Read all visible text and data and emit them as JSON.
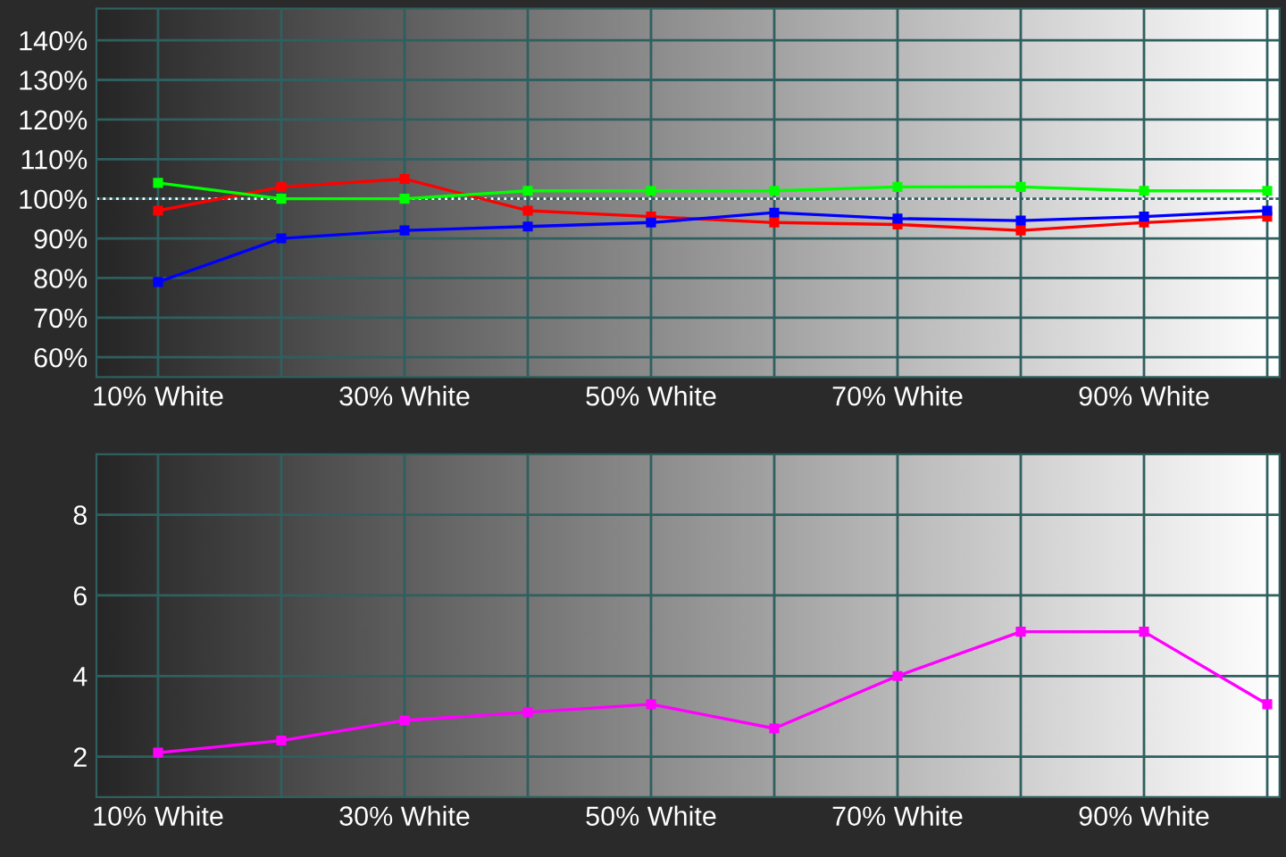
{
  "chart_data": [
    {
      "type": "line",
      "x": [
        10,
        20,
        30,
        40,
        50,
        60,
        70,
        80,
        90,
        100
      ],
      "series": [
        {
          "color": "#ff0000",
          "values": [
            97,
            103,
            105,
            97,
            95.5,
            94,
            93.5,
            92,
            94,
            95.5
          ]
        },
        {
          "color": "#00ff00",
          "values": [
            104,
            100,
            100,
            102,
            102,
            102,
            103,
            103,
            102,
            102
          ]
        },
        {
          "color": "#0000ff",
          "values": [
            79,
            90,
            92,
            93,
            94,
            96.5,
            95,
            94.5,
            95.5,
            97
          ]
        }
      ],
      "xlim": [
        5,
        101
      ],
      "xticks": [
        {
          "value": 10,
          "label": "10% White"
        },
        {
          "value": 20,
          "label": null
        },
        {
          "value": 30,
          "label": "30% White"
        },
        {
          "value": 40,
          "label": null
        },
        {
          "value": 50,
          "label": "50% White"
        },
        {
          "value": 60,
          "label": null
        },
        {
          "value": 70,
          "label": "70% White"
        },
        {
          "value": 80,
          "label": null
        },
        {
          "value": 90,
          "label": "90% White"
        },
        {
          "value": 100,
          "label": null
        }
      ],
      "ylim": [
        55,
        148
      ],
      "yticks": [
        {
          "value": 60,
          "label": "60%"
        },
        {
          "value": 70,
          "label": "70%"
        },
        {
          "value": 80,
          "label": "80%"
        },
        {
          "value": 90,
          "label": "90%"
        },
        {
          "value": 100,
          "label": "100%"
        },
        {
          "value": 110,
          "label": "110%"
        },
        {
          "value": 120,
          "label": "120%"
        },
        {
          "value": 130,
          "label": "130%"
        },
        {
          "value": 140,
          "label": "140%"
        }
      ],
      "ref_lines": [
        {
          "axis": "y",
          "value": 100,
          "color": "#ffffff",
          "line_style": "dotted"
        }
      ],
      "grid": true,
      "marker": "square",
      "line_style": "solid",
      "legend": false
    },
    {
      "type": "line",
      "x": [
        10,
        20,
        30,
        40,
        50,
        60,
        70,
        80,
        90,
        100
      ],
      "series": [
        {
          "color": "#ff00ff",
          "values": [
            2.1,
            2.4,
            2.9,
            3.1,
            3.3,
            2.7,
            4.0,
            5.1,
            5.1,
            3.3
          ]
        }
      ],
      "xlim": [
        5,
        101
      ],
      "xticks": [
        {
          "value": 10,
          "label": "10% White"
        },
        {
          "value": 20,
          "label": null
        },
        {
          "value": 30,
          "label": "30% White"
        },
        {
          "value": 40,
          "label": null
        },
        {
          "value": 50,
          "label": "50% White"
        },
        {
          "value": 60,
          "label": null
        },
        {
          "value": 70,
          "label": "70% White"
        },
        {
          "value": 80,
          "label": null
        },
        {
          "value": 90,
          "label": "90% White"
        },
        {
          "value": 100,
          "label": null
        }
      ],
      "ylim": [
        1,
        9.5
      ],
      "yticks": [
        2,
        4,
        6,
        8
      ],
      "grid": true,
      "marker": "square",
      "line_style": "solid",
      "legend": false
    }
  ]
}
